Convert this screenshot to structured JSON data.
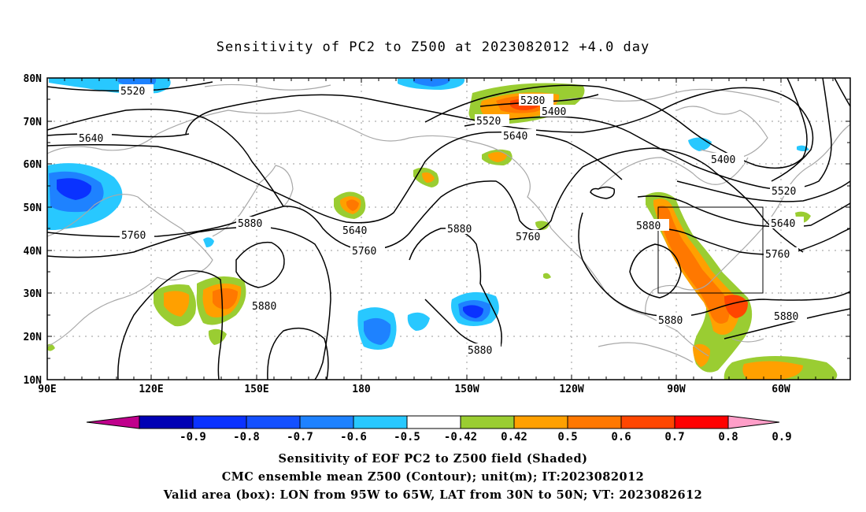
{
  "title": "Sensitivity of PC2 to Z500 at 2023082012 +4.0 day",
  "map": {
    "lon_labels": [
      "90E",
      "120E",
      "150E",
      "180",
      "150W",
      "120W",
      "90W",
      "60W"
    ],
    "lat_labels": [
      "10N",
      "20N",
      "30N",
      "40N",
      "50N",
      "60N",
      "70N",
      "80N"
    ],
    "contour_labels": [
      {
        "text": "5520"
      },
      {
        "text": "5640"
      },
      {
        "text": "5760"
      },
      {
        "text": "5880"
      },
      {
        "text": "5640"
      },
      {
        "text": "5760"
      },
      {
        "text": "5880"
      },
      {
        "text": "5520"
      },
      {
        "text": "5280"
      },
      {
        "text": "5400"
      },
      {
        "text": "5640"
      },
      {
        "text": "5880"
      },
      {
        "text": "5760"
      },
      {
        "text": "5880"
      },
      {
        "text": "5400"
      },
      {
        "text": "5520"
      },
      {
        "text": "5640"
      },
      {
        "text": "5760"
      },
      {
        "text": "5880"
      },
      {
        "text": "5880"
      },
      {
        "text": "5880"
      }
    ],
    "box": {
      "lon_from": "95W",
      "lon_to": "65W",
      "lat_from": "30N",
      "lat_to": "50N"
    }
  },
  "colorbar": {
    "labels": [
      "-0.9",
      "-0.8",
      "-0.7",
      "-0.6",
      "-0.5",
      "-0.42",
      "0.42",
      "0.5",
      "0.6",
      "0.7",
      "0.8",
      "0.9"
    ],
    "colors": [
      "#c0008c",
      "#0000b4",
      "#0a32ff",
      "#1450ff",
      "#1e82ff",
      "#28c8ff",
      "#ffffff",
      "#9acd32",
      "#ffa000",
      "#ff7800",
      "#ff4600",
      "#ff0000",
      "#ff9ec8"
    ]
  },
  "caption": {
    "line1": "Sensitivity of EOF PC2 to Z500 field (Shaded)",
    "line2": "CMC ensemble mean Z500 (Contour); unit(m); IT:2023082012",
    "line3": "Valid area (box): LON from 95W to 65W, LAT from 30N to 50N; VT: 2023082612"
  }
}
